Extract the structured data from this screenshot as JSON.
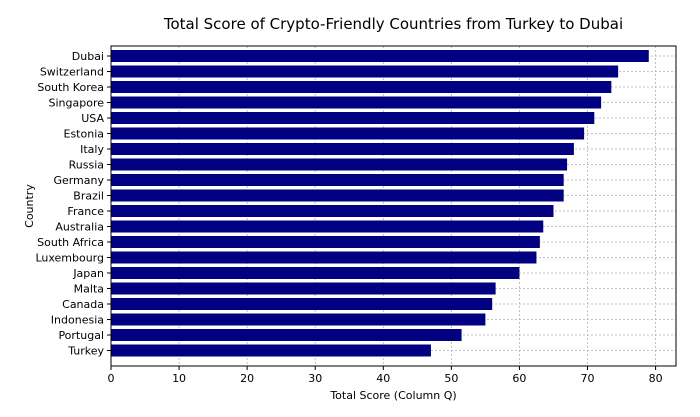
{
  "chart_data": {
    "type": "bar",
    "orientation": "horizontal",
    "title": "Total Score of Crypto-Friendly Countries from Turkey to Dubai",
    "xlabel": "Total Score (Column Q)",
    "ylabel": "Country",
    "xlim": [
      0,
      83
    ],
    "xticks": [
      0,
      10,
      20,
      30,
      40,
      50,
      60,
      70,
      80
    ],
    "grid": true,
    "bar_color": "#000080",
    "categories": [
      "Dubai",
      "Switzerland",
      "South Korea",
      "Singapore",
      "USA",
      "Estonia",
      "Italy",
      "Russia",
      "Germany",
      "Brazil",
      "France",
      "Australia",
      "South Africa",
      "Luxembourg",
      "Japan",
      "Malta",
      "Canada",
      "Indonesia",
      "Portugal",
      "Turkey"
    ],
    "values": [
      79,
      74.5,
      73.5,
      72,
      71,
      69.5,
      68,
      67,
      66.5,
      66.5,
      65,
      63.5,
      63,
      62.5,
      60,
      56.5,
      56,
      55,
      51.5,
      47
    ]
  }
}
